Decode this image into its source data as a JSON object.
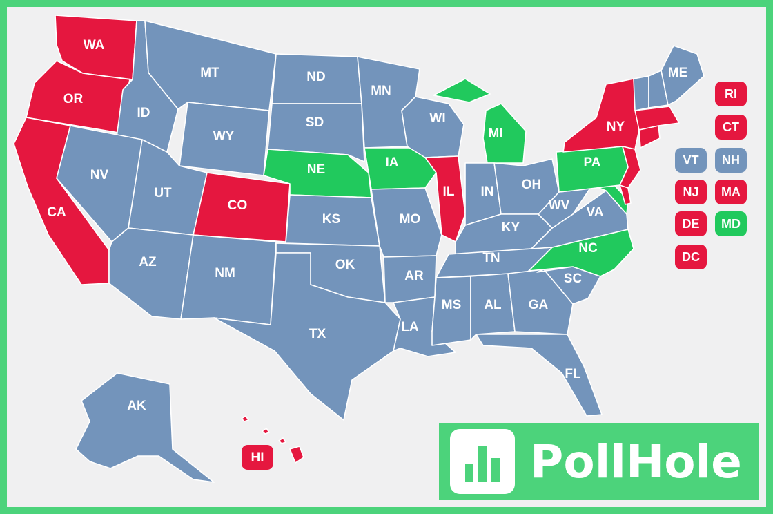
{
  "brand": {
    "name": "PollHole",
    "icon": "bar-chart-icon"
  },
  "colors": {
    "red": "#e5173f",
    "blue": "#7394bb",
    "green": "#21c95d",
    "background": "#f0f0f1",
    "frame": "#4cd37b"
  },
  "map_labels": {
    "WA": "WA",
    "OR": "OR",
    "CA": "CA",
    "ID": "ID",
    "NV": "NV",
    "MT": "MT",
    "WY": "WY",
    "UT": "UT",
    "AZ": "AZ",
    "CO": "CO",
    "NM": "NM",
    "ND": "ND",
    "SD": "SD",
    "NE": "NE",
    "KS": "KS",
    "OK": "OK",
    "TX": "TX",
    "MN": "MN",
    "IA": "IA",
    "MO": "MO",
    "AR": "AR",
    "LA": "LA",
    "WI": "WI",
    "IL": "IL",
    "MI": "MI",
    "IN": "IN",
    "OH": "OH",
    "KY": "KY",
    "TN": "TN",
    "MS": "MS",
    "AL": "AL",
    "GA": "GA",
    "FL": "FL",
    "SC": "SC",
    "NC": "NC",
    "VA": "VA",
    "WV": "WV",
    "PA": "PA",
    "NY": "NY",
    "ME": "ME",
    "AK": "AK",
    "HI": "HI"
  },
  "small_states": {
    "RI": "RI",
    "CT": "CT",
    "VT": "VT",
    "NH": "NH",
    "NJ": "NJ",
    "MA": "MA",
    "DE": "DE",
    "MD": "MD",
    "DC": "DC"
  },
  "state_colors": {
    "WA": "red",
    "OR": "red",
    "CA": "red",
    "CO": "red",
    "IL": "red",
    "NY": "red",
    "HI": "red",
    "RI": "red",
    "CT": "red",
    "NJ": "red",
    "MA": "red",
    "DE": "red",
    "DC": "red",
    "NE": "green",
    "IA": "green",
    "MI": "green",
    "PA": "green",
    "NC": "green",
    "MD": "green",
    "ID": "blue",
    "NV": "blue",
    "MT": "blue",
    "WY": "blue",
    "UT": "blue",
    "AZ": "blue",
    "NM": "blue",
    "ND": "blue",
    "SD": "blue",
    "KS": "blue",
    "OK": "blue",
    "TX": "blue",
    "MN": "blue",
    "MO": "blue",
    "AR": "blue",
    "LA": "blue",
    "WI": "blue",
    "IN": "blue",
    "OH": "blue",
    "KY": "blue",
    "TN": "blue",
    "MS": "blue",
    "AL": "blue",
    "GA": "blue",
    "FL": "blue",
    "SC": "blue",
    "VA": "blue",
    "WV": "blue",
    "ME": "blue",
    "AK": "blue",
    "VT": "blue",
    "NH": "blue"
  }
}
